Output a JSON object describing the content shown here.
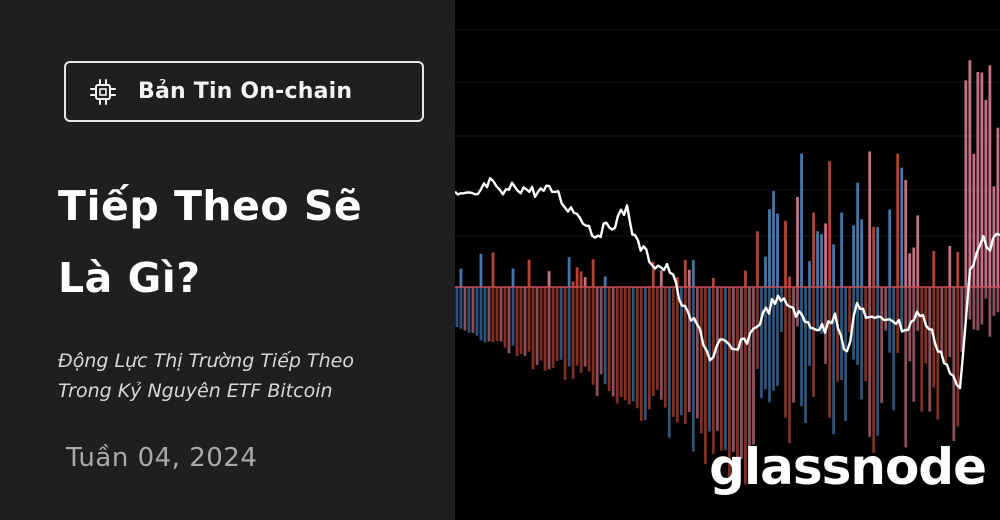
{
  "badge": {
    "label": "Bản Tin On-chain",
    "icon": "cpu-chip-icon"
  },
  "headline": {
    "line1": "Tiếp Theo Sẽ",
    "line2": "Là Gì?"
  },
  "subtitle": {
    "line1": "Động Lực Thị Trường Tiếp Theo",
    "line2": "Trong Kỷ Nguyên ETF Bitcoin"
  },
  "week_label": "Tuần 04, 2024",
  "brand": {
    "name": "glassnode"
  },
  "colors": {
    "background_left": "#1f1f1f",
    "background_right": "#000000",
    "bar_red": "#d2503c",
    "bar_pink": "#e8849a",
    "bar_blue": "#4f8bc9",
    "price_line": "#ffffff"
  }
}
